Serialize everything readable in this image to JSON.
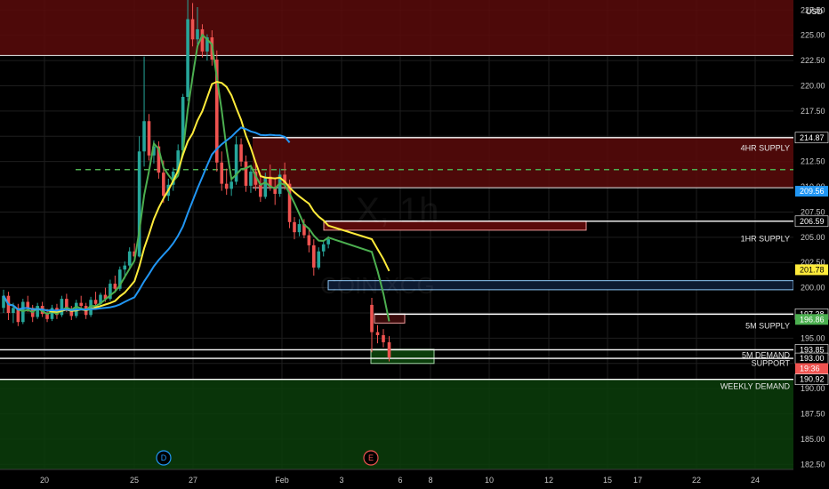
{
  "chart": {
    "currency": "USD",
    "watermark": "X, 1h",
    "watermark_sub": "COIN:XCG",
    "current_price_label": "19:36",
    "ma_badges": [
      {
        "label": "209.56",
        "color": "#2196f3",
        "text_dark": false
      },
      {
        "label": "201.78",
        "color": "#ffeb3b",
        "text_dark": true
      },
      {
        "label": "196.86",
        "color": "#4caf50",
        "text_dark": false
      }
    ],
    "markers": [
      {
        "label": "D",
        "color": "#2196f3"
      },
      {
        "label": "E",
        "color": "#ef5350"
      }
    ]
  },
  "colors": {
    "up": "#26a69a",
    "down": "#ef5350",
    "ma_fast": "#4caf50",
    "ma_mid": "#ffeb3b",
    "ma_slow": "#2196f3",
    "supply_zone": "#5a0a0a",
    "demand_zone": "#0b3d0b",
    "level_line": "#ffffff",
    "dashed_line": "#4caf50",
    "price_badge": "#ef5350"
  },
  "chart_data": {
    "type": "candlestick",
    "x_ticks": [
      "20",
      "25",
      "27",
      "Feb",
      "3",
      "6",
      "8",
      "10",
      "12",
      "15",
      "17",
      "22",
      "24"
    ],
    "y_ticks": [
      "227.50",
      "225.00",
      "222.50",
      "220.00",
      "217.50",
      "215.00",
      "212.50",
      "210.00",
      "207.50",
      "205.00",
      "202.50",
      "200.00",
      "197.50",
      "195.00",
      "192.50",
      "190.00",
      "187.50",
      "185.00",
      "182.50"
    ],
    "ylim": [
      182,
      228.5
    ],
    "price_labels": [
      {
        "label": "214.87",
        "value": 214.87
      },
      {
        "label": "206.59",
        "value": 206.59
      },
      {
        "label": "197.38",
        "value": 197.38
      },
      {
        "label": "193.85",
        "value": 193.85
      },
      {
        "label": "193.00",
        "value": 193.0
      },
      {
        "label": "190.92",
        "value": 190.92
      }
    ],
    "levels": [
      {
        "label": "4HR SUPPLY",
        "value": 214.87
      },
      {
        "label": "1HR SUPPLY",
        "value": 206.59
      },
      {
        "label": "5M SUPPLY",
        "value": 197.38
      },
      {
        "label": "5M DEMAND",
        "value": 193.85
      },
      {
        "label": "SUPPORT",
        "value": 193.0
      },
      {
        "label": "WEEKLY DEMAND",
        "value": 190.92
      }
    ],
    "zones": [
      {
        "kind": "supply",
        "from": 223.0,
        "to": 228.5
      },
      {
        "kind": "supply",
        "from": 209.9,
        "to": 214.9
      },
      {
        "kind": "demand",
        "from": 182.0,
        "to": 190.9
      }
    ],
    "dashed_level": 211.7,
    "ma_last": {
      "fast": 196.86,
      "mid": 201.78,
      "slow": 209.56
    },
    "candles": [
      [
        198.0,
        199.8,
        197.5,
        199.2
      ],
      [
        199.2,
        199.6,
        196.8,
        197.5
      ],
      [
        197.5,
        198.5,
        196.5,
        198.0
      ],
      [
        198.0,
        198.4,
        196.2,
        196.6
      ],
      [
        196.6,
        198.9,
        196.4,
        198.6
      ],
      [
        198.6,
        199.2,
        197.6,
        198.0
      ],
      [
        198.0,
        198.3,
        196.6,
        197.1
      ],
      [
        197.1,
        198.5,
        196.9,
        198.2
      ],
      [
        198.2,
        198.6,
        197.1,
        197.4
      ],
      [
        197.4,
        197.9,
        196.6,
        196.9
      ],
      [
        196.9,
        198.3,
        196.7,
        198.0
      ],
      [
        198.0,
        198.4,
        196.9,
        197.3
      ],
      [
        197.3,
        199.2,
        197.1,
        198.9
      ],
      [
        198.9,
        199.4,
        197.6,
        197.9
      ],
      [
        197.9,
        198.2,
        196.8,
        197.2
      ],
      [
        197.2,
        198.8,
        197.0,
        198.5
      ],
      [
        198.5,
        199.2,
        197.9,
        198.2
      ],
      [
        198.2,
        198.5,
        196.9,
        197.3
      ],
      [
        197.3,
        199.1,
        197.1,
        198.8
      ],
      [
        198.8,
        199.6,
        198.0,
        198.4
      ],
      [
        198.4,
        199.5,
        198.1,
        199.3
      ],
      [
        199.3,
        200.0,
        198.6,
        198.9
      ],
      [
        198.9,
        200.8,
        198.7,
        200.4
      ],
      [
        200.4,
        201.2,
        199.5,
        199.9
      ],
      [
        199.9,
        202.1,
        199.7,
        201.8
      ],
      [
        201.8,
        202.6,
        200.9,
        202.2
      ],
      [
        202.2,
        204.0,
        201.9,
        203.6
      ],
      [
        203.6,
        204.4,
        202.8,
        203.1
      ],
      [
        203.1,
        215.0,
        203.0,
        213.5
      ],
      [
        213.5,
        222.9,
        212.0,
        216.5
      ],
      [
        216.5,
        217.2,
        212.6,
        213.1
      ],
      [
        213.1,
        214.6,
        212.3,
        214.0
      ],
      [
        214.0,
        214.5,
        210.8,
        211.4
      ],
      [
        211.4,
        212.6,
        208.4,
        209.1
      ],
      [
        209.1,
        210.8,
        208.6,
        210.2
      ],
      [
        210.2,
        211.9,
        209.6,
        211.5
      ],
      [
        211.5,
        214.2,
        211.1,
        213.6
      ],
      [
        213.6,
        219.2,
        213.0,
        218.9
      ],
      [
        218.9,
        229.0,
        218.5,
        226.6
      ],
      [
        226.6,
        228.2,
        223.9,
        224.6
      ],
      [
        224.6,
        227.8,
        224.1,
        225.6
      ],
      [
        225.6,
        226.1,
        222.8,
        223.4
      ],
      [
        223.4,
        225.1,
        222.5,
        224.8
      ],
      [
        224.8,
        225.5,
        222.0,
        222.6
      ],
      [
        222.6,
        223.5,
        211.5,
        212.4
      ],
      [
        212.4,
        213.5,
        209.6,
        210.3
      ],
      [
        210.3,
        211.8,
        209.2,
        209.8
      ],
      [
        209.8,
        211.0,
        209.1,
        210.5
      ],
      [
        210.5,
        215.0,
        210.2,
        214.2
      ],
      [
        214.2,
        214.8,
        212.0,
        212.5
      ],
      [
        212.5,
        213.1,
        209.5,
        210.1
      ],
      [
        210.1,
        212.0,
        209.4,
        211.5
      ],
      [
        211.5,
        212.2,
        209.6,
        210.2
      ],
      [
        210.2,
        211.0,
        208.5,
        209.0
      ],
      [
        209.0,
        211.4,
        208.8,
        211.0
      ],
      [
        211.0,
        212.2,
        209.6,
        210.0
      ],
      [
        210.0,
        210.8,
        208.2,
        209.3
      ],
      [
        209.3,
        211.8,
        209.0,
        211.2
      ],
      [
        211.2,
        212.4,
        209.7,
        210.3
      ],
      [
        210.3,
        210.7,
        205.9,
        206.5
      ],
      [
        206.5,
        207.0,
        204.8,
        205.5
      ],
      [
        205.5,
        206.8,
        205.1,
        206.3
      ],
      [
        206.3,
        206.8,
        204.9,
        205.2
      ],
      [
        205.2,
        205.9,
        203.5,
        204.2
      ],
      [
        204.2,
        204.8,
        201.2,
        202.0
      ],
      [
        202.0,
        204.0,
        201.8,
        203.6
      ],
      [
        203.6,
        204.6,
        203.1,
        204.3
      ],
      [
        204.3,
        205.1,
        203.9,
        204.8
      ],
      [
        198.3,
        199.0,
        193.6,
        195.6
      ],
      [
        195.6,
        196.3,
        194.5,
        195.3
      ],
      [
        195.3,
        195.9,
        194.1,
        194.6
      ],
      [
        194.6,
        195.2,
        192.7,
        193.1
      ]
    ]
  }
}
